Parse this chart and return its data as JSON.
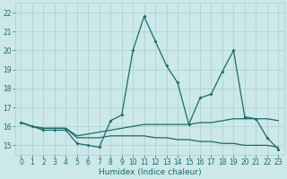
{
  "xlabel": "Humidex (Indice chaleur)",
  "xlim": [
    -0.5,
    23.5
  ],
  "ylim": [
    14.5,
    22.5
  ],
  "yticks": [
    15,
    16,
    17,
    18,
    19,
    20,
    21,
    22
  ],
  "xticks": [
    0,
    1,
    2,
    3,
    4,
    5,
    6,
    7,
    8,
    9,
    10,
    11,
    12,
    13,
    14,
    15,
    16,
    17,
    18,
    19,
    20,
    21,
    22,
    23
  ],
  "background_color": "#cce8e8",
  "grid_color": "#aacfcf",
  "line_color": "#1a6b6b",
  "line1_x": [
    0,
    1,
    2,
    3,
    4,
    5,
    6,
    7,
    8,
    9,
    10,
    11,
    12,
    13,
    14,
    15,
    16,
    17,
    18,
    19,
    20,
    21,
    22,
    23
  ],
  "line1_y": [
    16.2,
    16.0,
    15.8,
    15.8,
    15.8,
    15.1,
    15.0,
    14.9,
    16.3,
    16.6,
    20.0,
    21.8,
    20.5,
    19.2,
    18.3,
    16.1,
    17.5,
    17.7,
    18.9,
    20.0,
    16.5,
    16.4,
    15.4,
    14.8
  ],
  "line2_x": [
    0,
    1,
    2,
    3,
    4,
    5,
    6,
    7,
    8,
    9,
    10,
    11,
    12,
    13,
    14,
    15,
    16,
    17,
    18,
    19,
    20,
    21,
    22,
    23
  ],
  "line2_y": [
    16.2,
    16.0,
    15.9,
    15.9,
    15.9,
    15.5,
    15.6,
    15.7,
    15.8,
    15.9,
    16.0,
    16.1,
    16.1,
    16.1,
    16.1,
    16.1,
    16.2,
    16.2,
    16.3,
    16.4,
    16.4,
    16.4,
    16.4,
    16.3
  ],
  "line3_x": [
    0,
    1,
    2,
    3,
    4,
    5,
    6,
    7,
    8,
    9,
    10,
    11,
    12,
    13,
    14,
    15,
    16,
    17,
    18,
    19,
    20,
    21,
    22,
    23
  ],
  "line3_y": [
    16.2,
    16.0,
    15.9,
    15.9,
    15.9,
    15.4,
    15.4,
    15.4,
    15.5,
    15.5,
    15.5,
    15.5,
    15.4,
    15.4,
    15.3,
    15.3,
    15.2,
    15.2,
    15.1,
    15.1,
    15.0,
    15.0,
    15.0,
    14.9
  ],
  "tick_fontsize": 5.5,
  "xlabel_fontsize": 6.5
}
